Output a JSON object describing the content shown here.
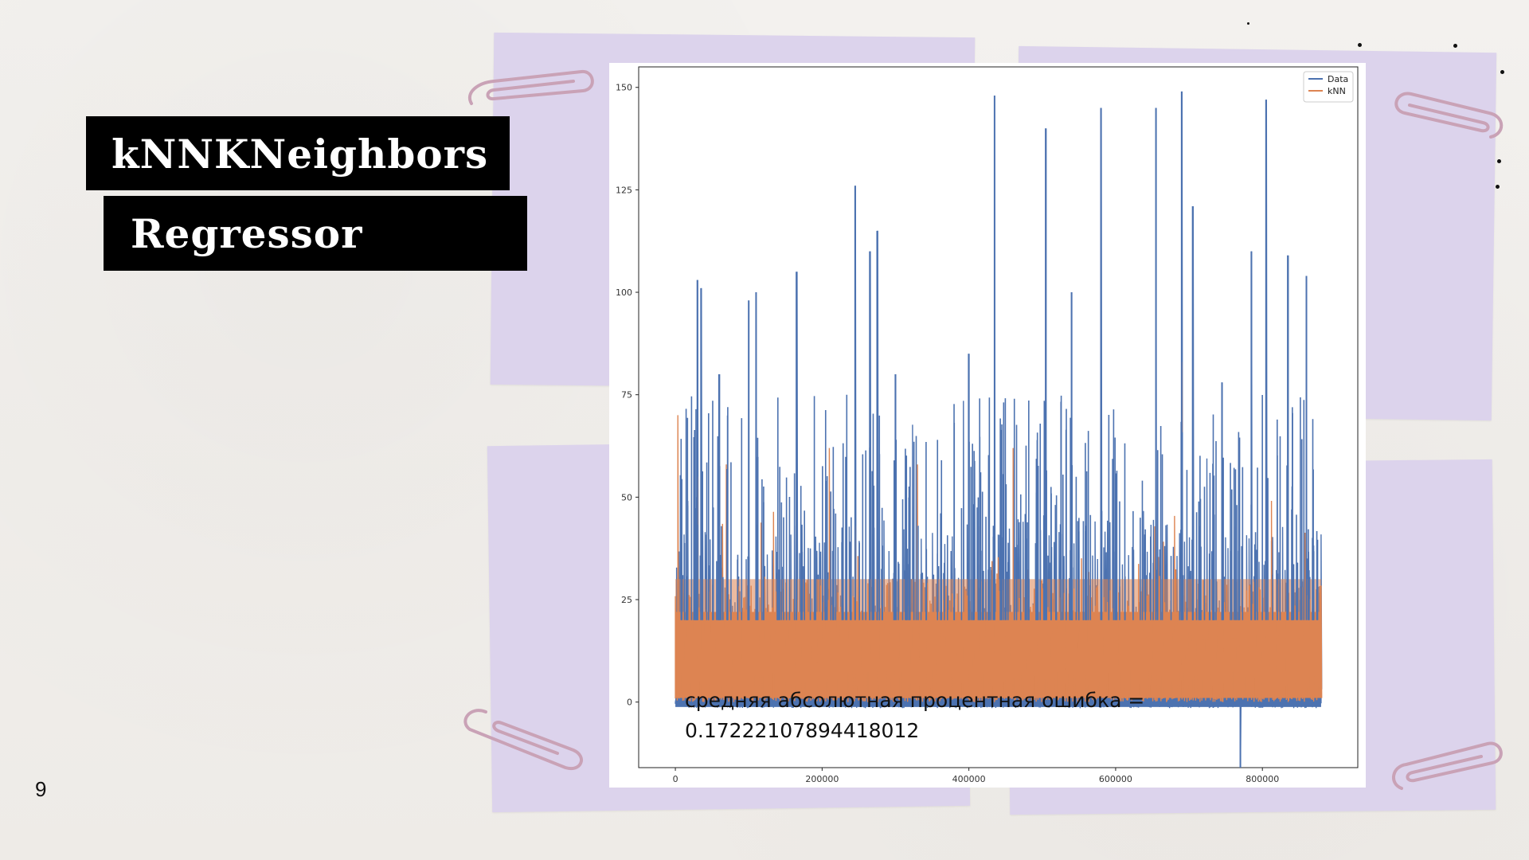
{
  "slide": {
    "title_line1": "kNNKNeighbors",
    "title_line2": "Regressor",
    "page_number": "9",
    "colors": {
      "sticky_note": "#dcd3ec",
      "title_bg": "#000000",
      "title_fg": "#ffffff"
    }
  },
  "annotation": {
    "metric_label": "средняя абсолютная процентная ошибка =",
    "metric_value": "0.17222107894418012"
  },
  "chart_data": {
    "type": "line",
    "title": "",
    "xlabel": "",
    "ylabel": "",
    "xlim": [
      -50000,
      930000
    ],
    "ylim": [
      -16,
      155
    ],
    "x_ticks": [
      0,
      200000,
      400000,
      600000,
      800000
    ],
    "y_ticks": [
      0,
      25,
      50,
      75,
      100,
      125,
      150
    ],
    "legend": {
      "position": "top-right",
      "entries": [
        "Data",
        "kNN"
      ]
    },
    "series": [
      {
        "name": "Data",
        "color": "#4c72b0",
        "baseline_range": [
          0,
          45
        ],
        "peaks": [
          {
            "x": 30000,
            "y": 103
          },
          {
            "x": 35000,
            "y": 101
          },
          {
            "x": 60000,
            "y": 80
          },
          {
            "x": 100000,
            "y": 98
          },
          {
            "x": 110000,
            "y": 100
          },
          {
            "x": 165000,
            "y": 105
          },
          {
            "x": 245000,
            "y": 126
          },
          {
            "x": 265000,
            "y": 110
          },
          {
            "x": 275000,
            "y": 115
          },
          {
            "x": 300000,
            "y": 80
          },
          {
            "x": 400000,
            "y": 85
          },
          {
            "x": 435000,
            "y": 148
          },
          {
            "x": 505000,
            "y": 140
          },
          {
            "x": 540000,
            "y": 100
          },
          {
            "x": 580000,
            "y": 145
          },
          {
            "x": 655000,
            "y": 145
          },
          {
            "x": 690000,
            "y": 149
          },
          {
            "x": 705000,
            "y": 121
          },
          {
            "x": 745000,
            "y": 78
          },
          {
            "x": 785000,
            "y": 110
          },
          {
            "x": 805000,
            "y": 147
          },
          {
            "x": 835000,
            "y": 109
          },
          {
            "x": 860000,
            "y": 104
          },
          {
            "x": 770000,
            "y": -16
          }
        ]
      },
      {
        "name": "kNN",
        "color": "#dd8452",
        "baseline_range": [
          0,
          30
        ],
        "peaks": [
          {
            "x": 3000,
            "y": 70
          },
          {
            "x": 30000,
            "y": 55
          },
          {
            "x": 70000,
            "y": 58
          },
          {
            "x": 210000,
            "y": 62
          },
          {
            "x": 330000,
            "y": 58
          },
          {
            "x": 460000,
            "y": 62
          },
          {
            "x": 540000,
            "y": 58
          },
          {
            "x": 690000,
            "y": 83
          },
          {
            "x": 860000,
            "y": 50
          }
        ]
      }
    ],
    "n_points": 880000
  }
}
